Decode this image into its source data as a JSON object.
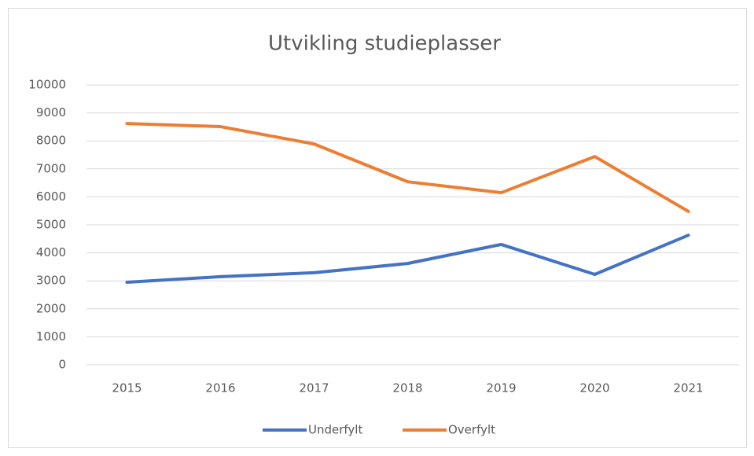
{
  "chart_data": {
    "type": "line",
    "title": "Utvikling studieplasser",
    "categories": [
      "2015",
      "2016",
      "2017",
      "2018",
      "2019",
      "2020",
      "2021"
    ],
    "series": [
      {
        "name": "Underfylt",
        "color": "#4472c4",
        "values": [
          2950,
          3150,
          3290,
          3620,
          4300,
          3230,
          4630
        ]
      },
      {
        "name": "Overfylt",
        "color": "#ed7d31",
        "values": [
          8620,
          8510,
          7890,
          6540,
          6150,
          7440,
          5480
        ]
      }
    ],
    "ylim": [
      0,
      10000
    ],
    "yticks": [
      0,
      1000,
      2000,
      3000,
      4000,
      5000,
      6000,
      7000,
      8000,
      9000,
      10000
    ],
    "grid": true,
    "legend": "bottom"
  }
}
